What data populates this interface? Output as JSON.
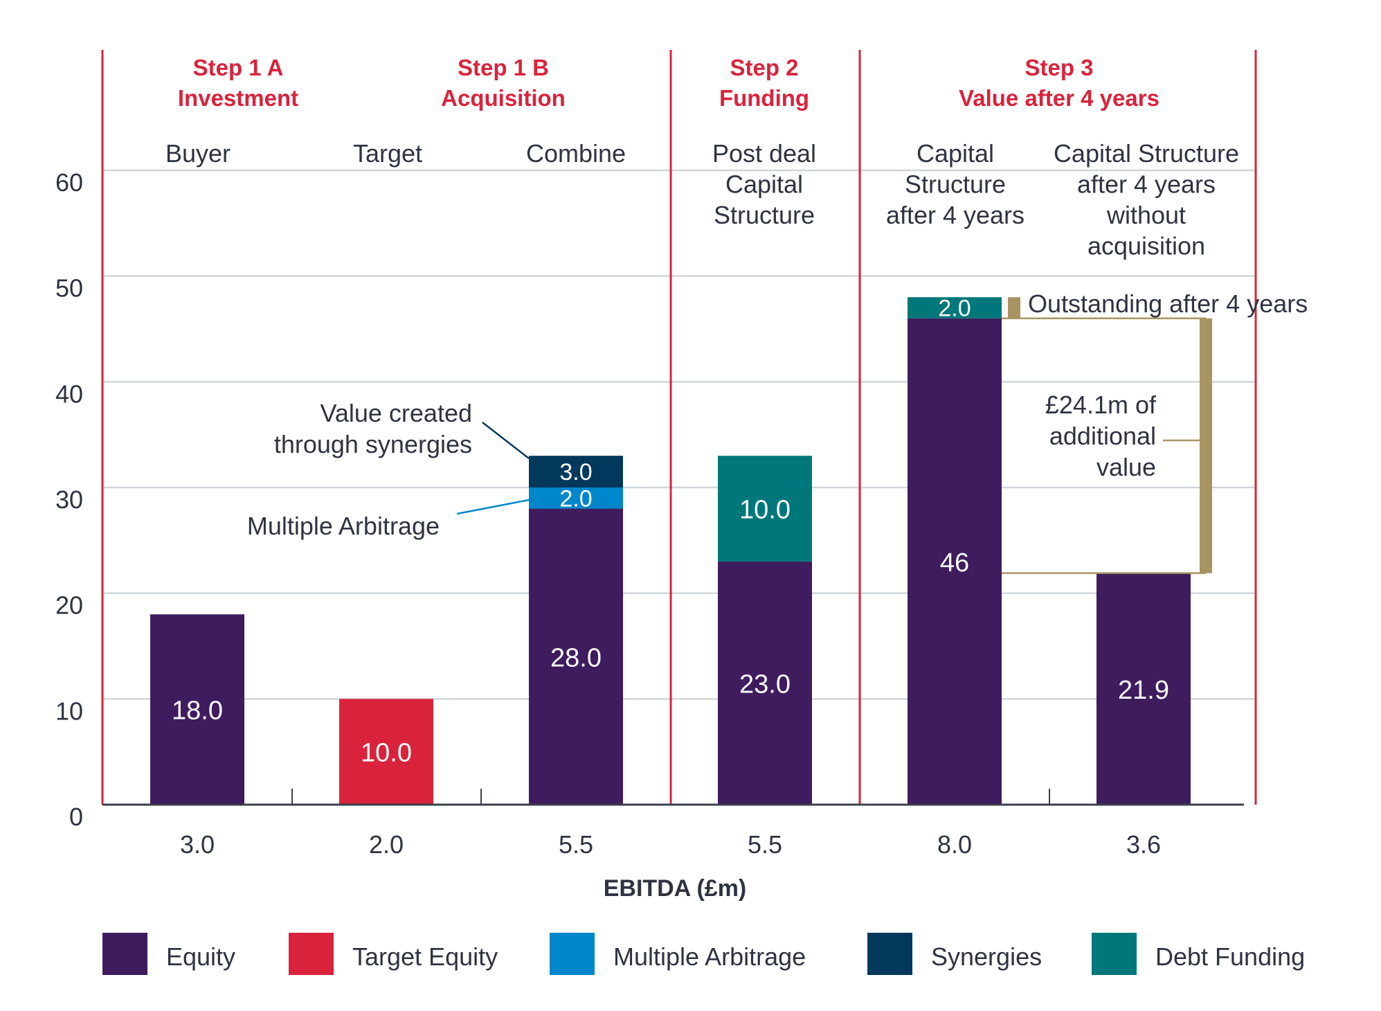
{
  "chart_data": {
    "type": "bar",
    "stacked": true,
    "title": "",
    "xlabel": "EBITDA (£m)",
    "ylabel": "",
    "ylim": [
      0,
      60
    ],
    "yticks": [
      0,
      10,
      20,
      30,
      40,
      50,
      60
    ],
    "grid": true,
    "legend_position": "bottom",
    "steps": [
      {
        "line1": "Step 1 A",
        "line2": "Investment",
        "categories": [
          0
        ]
      },
      {
        "line1": "Step 1 B",
        "line2": "Acquisition",
        "categories": [
          1,
          2
        ]
      },
      {
        "line1": "Step 2",
        "line2": "Funding",
        "categories": [
          3
        ]
      },
      {
        "line1": "Step 3",
        "line2": "Value after 4 years",
        "categories": [
          4,
          5
        ]
      }
    ],
    "categories": [
      {
        "label": [
          "Buyer"
        ],
        "ebitda": "3.0"
      },
      {
        "label": [
          "Target"
        ],
        "ebitda": "2.0"
      },
      {
        "label": [
          "Combine"
        ],
        "ebitda": "5.5"
      },
      {
        "label": [
          "Post deal",
          "Capital",
          "Structure"
        ],
        "ebitda": "5.5"
      },
      {
        "label": [
          "Capital",
          "Structure",
          "after 4 years"
        ],
        "ebitda": "8.0"
      },
      {
        "label": [
          "Capital Structure",
          "after 4 years",
          "without",
          "acquisition"
        ],
        "ebitda": "3.6"
      }
    ],
    "series": [
      {
        "name": "Equity",
        "color": "#3f1c5e",
        "values": [
          18.0,
          null,
          28.0,
          23.0,
          46,
          21.9
        ],
        "labels": [
          "18.0",
          "",
          "28.0",
          "23.0",
          "46",
          "21.9"
        ]
      },
      {
        "name": "Target Equity",
        "color": "#d9233c",
        "values": [
          null,
          10.0,
          null,
          null,
          null,
          null
        ],
        "labels": [
          "",
          "10.0",
          "",
          "",
          "",
          ""
        ]
      },
      {
        "name": "Multiple Arbitrage",
        "color": "#0087cb",
        "values": [
          null,
          null,
          2.0,
          null,
          null,
          null
        ],
        "labels": [
          "",
          "",
          "2.0",
          "",
          "",
          ""
        ]
      },
      {
        "name": "Synergies",
        "color": "#01385b",
        "values": [
          null,
          null,
          3.0,
          null,
          null,
          null
        ],
        "labels": [
          "",
          "",
          "3.0",
          "",
          "",
          ""
        ]
      },
      {
        "name": "Debt Funding",
        "color": "#00777a",
        "values": [
          null,
          null,
          null,
          10.0,
          2.0,
          null
        ],
        "labels": [
          "",
          "",
          "",
          "10.0",
          "2.0",
          ""
        ]
      }
    ],
    "annotations": {
      "synergies": [
        "Value created",
        "through synergies"
      ],
      "multiple_arbitrage": "Multiple Arbitrage",
      "outstanding": "Outstanding after 4 years",
      "additional_value": [
        "£24.1m of",
        "additional",
        "value"
      ]
    }
  },
  "colors": {
    "step_red": "#d9233c",
    "grid": "#cfd6db",
    "axis": "#3b3f4a",
    "text": "#2f3340",
    "gold": "#a89461"
  }
}
